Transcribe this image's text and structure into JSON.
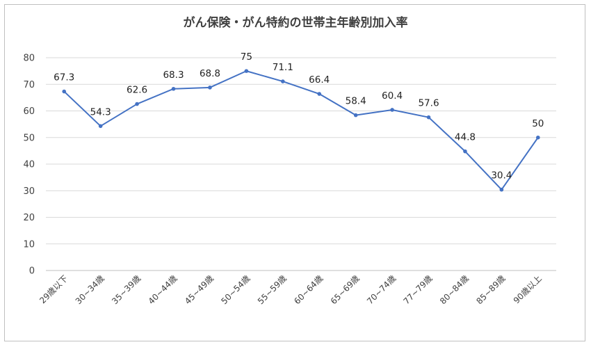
{
  "chart_data": {
    "type": "line",
    "title": "がん保険・がん特約の世帯主年齢別加入率",
    "xlabel": "",
    "ylabel": "",
    "categories": [
      "29歳以下",
      "30~34歳",
      "35~39歳",
      "40~44歳",
      "45~49歳",
      "50~54歳",
      "55~59歳",
      "60~64歳",
      "65~69歳",
      "70~74歳",
      "77~79歳",
      "80~84歳",
      "85~89歳",
      "90歳以上"
    ],
    "series": [
      {
        "values": [
          67.3,
          54.3,
          62.6,
          68.3,
          68.8,
          75,
          71.1,
          66.4,
          58.4,
          60.4,
          57.6,
          44.8,
          30.4,
          50
        ]
      }
    ],
    "data_labels": [
      "67.3",
      "54.3",
      "62.6",
      "68.3",
      "68.8",
      "75",
      "71.1",
      "66.4",
      "58.4",
      "60.4",
      "57.6",
      "44.8",
      "30.4",
      "50"
    ],
    "ylim": [
      0,
      80
    ],
    "yticks": [
      0,
      10,
      20,
      30,
      40,
      50,
      60,
      70,
      80
    ],
    "grid": true,
    "legend": "none",
    "line_color": "#4472C4",
    "grid_color": "#d9d9d9"
  }
}
